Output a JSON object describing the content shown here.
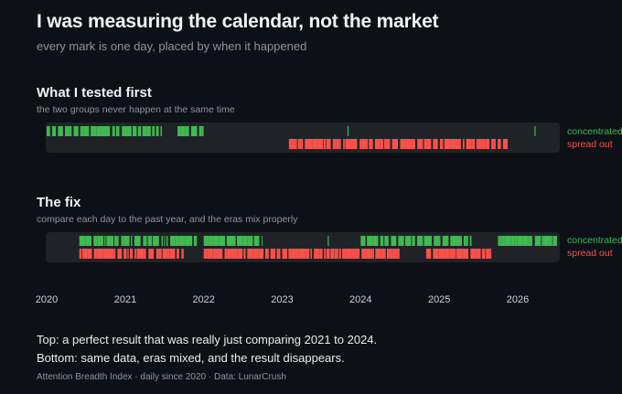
{
  "header": {
    "title": "I was measuring the calendar, not the market",
    "subtitle": "every mark is one day, placed by when it happened"
  },
  "chart_data": {
    "type": "strip",
    "x_range": [
      "2020-01-01",
      "2026-08-31"
    ],
    "x_ticks": [
      "2020",
      "2021",
      "2022",
      "2023",
      "2024",
      "2025",
      "2026"
    ],
    "grid": false,
    "colors": {
      "concentrated": "#3fb950",
      "spread_out": "#f85149"
    },
    "panels": [
      {
        "title": "What I tested first",
        "subtitle": "the two groups never happen at the same time",
        "series": [
          {
            "name": "concentrated",
            "ranges": [
              [
                "2020-01-01",
                "2021-06-20"
              ],
              [
                "2021-09-01",
                "2021-12-31"
              ],
              [
                "2023-11-01",
                "2023-11-03"
              ],
              [
                "2026-03-20",
                "2026-03-22"
              ]
            ]
          },
          {
            "name": "spread out",
            "ranges": [
              [
                "2023-02-01",
                "2025-11-15"
              ]
            ]
          }
        ]
      },
      {
        "title": "The fix",
        "subtitle": "compare each day to the past year, and the eras mix properly",
        "series": [
          {
            "name": "concentrated",
            "ranges": [
              [
                "2020-06-01",
                "2021-11-30"
              ],
              [
                "2022-01-01",
                "2022-09-30"
              ],
              [
                "2023-08-01",
                "2023-08-03"
              ],
              [
                "2024-01-01",
                "2025-05-31"
              ],
              [
                "2025-10-01",
                "2026-06-30"
              ]
            ]
          },
          {
            "name": "spread out",
            "ranges": [
              [
                "2020-06-01",
                "2021-09-30"
              ],
              [
                "2022-01-01",
                "2022-12-31"
              ],
              [
                "2023-01-01",
                "2023-08-31"
              ],
              [
                "2023-09-01",
                "2024-06-30"
              ],
              [
                "2024-11-01",
                "2025-08-31"
              ]
            ]
          }
        ]
      }
    ]
  },
  "notes": {
    "top": "Top: a perfect result that was really just comparing 2021 to 2024.",
    "bottom": "Bottom: same data, eras mixed, and the result disappears."
  },
  "source": "Attention Breadth Index · daily since 2020 · Data: LunarCrush"
}
